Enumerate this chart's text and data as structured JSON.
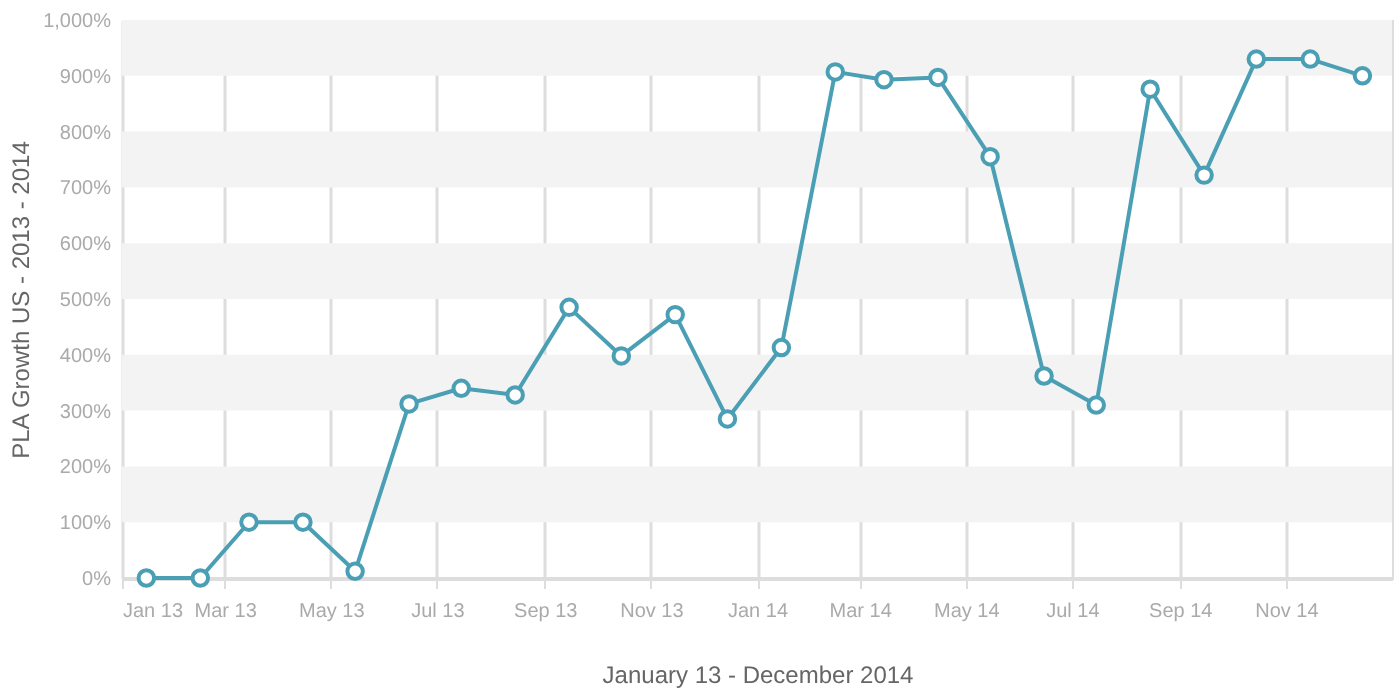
{
  "chart_data": {
    "type": "line",
    "xlabel": "January 13 - December 2014",
    "ylabel": "PLA Growth US - 2013 - 2014",
    "x": [
      "2013-01-15",
      "2013-02-15",
      "2013-03-15",
      "2013-04-15",
      "2013-05-15",
      "2013-06-15",
      "2013-07-15",
      "2013-08-15",
      "2013-09-15",
      "2013-10-15",
      "2013-11-15",
      "2013-12-15",
      "2014-01-15",
      "2014-02-15",
      "2014-03-15",
      "2014-04-15",
      "2014-05-15",
      "2014-06-15",
      "2014-07-15",
      "2014-08-15",
      "2014-09-15",
      "2014-10-15",
      "2014-11-15",
      "2014-12-15"
    ],
    "series": [
      {
        "color": "#4a9fb5",
        "values": [
          0,
          0,
          100,
          100,
          12,
          312,
          340,
          328,
          485,
          398,
          472,
          285,
          413,
          907,
          893,
          897,
          755,
          362,
          310,
          876,
          722,
          930,
          930,
          900
        ]
      }
    ],
    "xlim": [
      "2013-01-01",
      "2015-01-01"
    ],
    "xticks": [
      {
        "value": "2013-01",
        "label": "Jan 13"
      },
      {
        "value": "2013-03",
        "label": "Mar 13"
      },
      {
        "value": "2013-05",
        "label": "May 13"
      },
      {
        "value": "2013-07",
        "label": "Jul 13"
      },
      {
        "value": "2013-09",
        "label": "Sep 13"
      },
      {
        "value": "2013-11",
        "label": "Nov 13"
      },
      {
        "value": "2014-01",
        "label": "Jan 14"
      },
      {
        "value": "2014-03",
        "label": "Mar 14"
      },
      {
        "value": "2014-05",
        "label": "May 14"
      },
      {
        "value": "2014-07",
        "label": "Jul 14"
      },
      {
        "value": "2014-09",
        "label": "Sep 14"
      },
      {
        "value": "2014-11",
        "label": "Nov 14"
      }
    ],
    "ylim": [
      0,
      1000
    ],
    "yticks": [
      {
        "value": 0,
        "label": "0%"
      },
      {
        "value": 100,
        "label": "100%"
      },
      {
        "value": 200,
        "label": "200%"
      },
      {
        "value": 300,
        "label": "300%"
      },
      {
        "value": 400,
        "label": "400%"
      },
      {
        "value": 500,
        "label": "500%"
      },
      {
        "value": 600,
        "label": "600%"
      },
      {
        "value": 700,
        "label": "700%"
      },
      {
        "value": 800,
        "label": "800%"
      },
      {
        "value": 900,
        "label": "900%"
      },
      {
        "value": 1000,
        "label": "1,000%"
      }
    ],
    "grid": true,
    "marker": "circle",
    "line_style": "solid"
  }
}
